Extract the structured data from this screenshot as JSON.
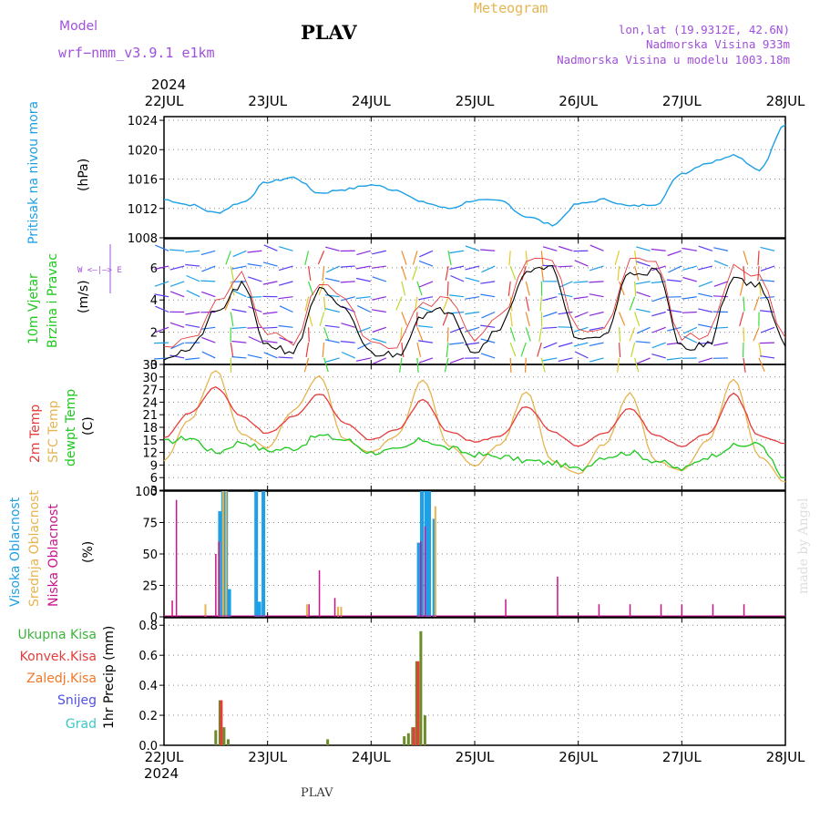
{
  "header": {
    "model_label": "Model",
    "model_value": "wrf−nmm_v3.9.1  e1km",
    "station": "PLAV",
    "meteogram": "Meteogram",
    "lonlat": "lon,lat (19.9312E, 42.6N)",
    "elev": "Nadmorska Visina 933m",
    "elev_model": "Nadmorska Visina u modelu 1003.18m",
    "footer_station": "PLAV",
    "credit": "made by Angel"
  },
  "colors": {
    "pressure": "#1ea0e6",
    "temp2m": "#e63c3c",
    "sfc": "#e6b450",
    "dew": "#1ec81e",
    "purple": "#a050dc",
    "high": "#1ea0e6",
    "mid": "#e6b450",
    "low": "#c8148c",
    "ukupna": "#3cb43c",
    "konvek": "#e63c3c",
    "zaledj": "#f07828",
    "snijeg": "#5050e6",
    "grad": "#3cc8c8"
  },
  "time_axis": {
    "year": "2024",
    "days": [
      "22JUL",
      "23JUL",
      "24JUL",
      "25JUL",
      "26JUL",
      "27JUL",
      "28JUL"
    ]
  },
  "panel_labels": {
    "pressure": {
      "name": "Pritisak na nivou mora",
      "unit": "(hPa)"
    },
    "wind": {
      "line1": "10m Vjetar",
      "line2": "Brzina i Pravac",
      "unit": "(m/s)",
      "compass": "W <–|–> E"
    },
    "temp": {
      "t2": "2m Temp",
      "sfc": "SFC Temp",
      "dew": "dewpt Temp",
      "unit": "(C)"
    },
    "cloud": {
      "high": "Visoka Oblacnost",
      "mid": "Srednja Oblacnost",
      "low": "Niska Oblacnost",
      "unit": "(%)"
    },
    "precip": {
      "ukupna": "Ukupna Kisa",
      "konvek": "Konvek.Kisa",
      "zaledj": "Zaledj.Kisa",
      "snijeg": "Snijeg",
      "grad": "Grad",
      "axis": "1hr Precip (mm)"
    }
  },
  "chart_data": [
    {
      "type": "line",
      "title": "Pritisak na nivou mora",
      "ylabel": "(hPa)",
      "ylim": [
        1008,
        1024.5
      ],
      "yticks": [
        1008,
        1012,
        1016,
        1020,
        1024
      ],
      "x_days": [
        0,
        0.25,
        0.5,
        0.75,
        1.0,
        1.25,
        1.5,
        1.75,
        2.0,
        2.25,
        2.5,
        2.75,
        3.0,
        3.25,
        3.5,
        3.75,
        4.0,
        4.25,
        4.5,
        4.75,
        5.0,
        5.25,
        5.5,
        5.75,
        6.0
      ],
      "series": [
        {
          "name": "Pritisak",
          "values": [
            1013.2,
            1012.5,
            1011.4,
            1012.8,
            1015.6,
            1016.2,
            1014.1,
            1014.6,
            1015.2,
            1014.5,
            1012.8,
            1012.0,
            1013.1,
            1013.0,
            1010.9,
            1009.8,
            1012.6,
            1013.2,
            1012.3,
            1012.6,
            1016.8,
            1018.2,
            1019.3,
            1017.3,
            1023.3
          ]
        }
      ]
    },
    {
      "type": "line",
      "title": "10m Vjetar Brzina i Pravac",
      "ylabel": "(m/s)",
      "ylim": [
        0,
        7.8
      ],
      "yticks": [
        0,
        2,
        4,
        6
      ],
      "x_days": [
        0,
        0.25,
        0.5,
        0.75,
        1.0,
        1.25,
        1.5,
        1.75,
        2.0,
        2.25,
        2.5,
        2.75,
        3.0,
        3.25,
        3.5,
        3.75,
        4.0,
        4.25,
        4.5,
        4.75,
        5.0,
        5.25,
        5.5,
        5.75,
        6.0
      ],
      "series": [
        {
          "name": "Brzina",
          "values": [
            0.5,
            0.9,
            3.2,
            4.9,
            1.2,
            0.8,
            4.6,
            3.3,
            0.7,
            0.6,
            3.1,
            3.4,
            0.8,
            2.4,
            5.8,
            5.9,
            1.4,
            1.8,
            5.7,
            5.8,
            1.1,
            1.2,
            5.4,
            4.9,
            1.2
          ]
        }
      ]
    },
    {
      "type": "line",
      "title": "2m Temp / SFC Temp / dewpt Temp",
      "ylabel": "(C)",
      "ylim": [
        3,
        33
      ],
      "yticks": [
        3,
        6,
        9,
        12,
        15,
        18,
        21,
        24,
        27,
        30,
        33
      ],
      "x_days": [
        0,
        0.25,
        0.5,
        0.75,
        1.0,
        1.25,
        1.5,
        1.75,
        2.0,
        2.25,
        2.5,
        2.75,
        3.0,
        3.25,
        3.5,
        3.75,
        4.0,
        4.25,
        4.5,
        4.75,
        5.0,
        5.25,
        5.5,
        5.75,
        6.0
      ],
      "series": [
        {
          "name": "2m Temp",
          "values": [
            15.5,
            21.5,
            27.5,
            20.5,
            16.5,
            20.5,
            26.0,
            19.0,
            15.0,
            17.5,
            24.5,
            17.0,
            14.5,
            16.0,
            23.0,
            17.0,
            13.5,
            16.5,
            22.5,
            16.0,
            13.5,
            16.5,
            26.0,
            16.0,
            14.0
          ]
        },
        {
          "name": "SFC Temp",
          "values": [
            10.0,
            20.0,
            31.5,
            16.5,
            13.0,
            22.0,
            30.0,
            15.0,
            12.0,
            16.0,
            29.5,
            13.5,
            9.0,
            14.0,
            26.5,
            10.0,
            7.0,
            14.0,
            26.0,
            10.0,
            7.5,
            15.0,
            29.5,
            11.0,
            5.0
          ]
        },
        {
          "name": "dewpt Temp",
          "values": [
            14.5,
            15.5,
            12.0,
            14.5,
            12.5,
            13.0,
            16.0,
            15.0,
            12.0,
            12.5,
            15.0,
            13.0,
            11.5,
            11.0,
            10.0,
            9.5,
            8.0,
            11.0,
            12.0,
            10.0,
            8.0,
            11.0,
            13.5,
            14.0,
            5.5
          ]
        }
      ]
    },
    {
      "type": "bar",
      "title": "Visoka / Srednja / Niska Oblacnost",
      "ylabel": "(%)",
      "ylim": [
        0,
        100
      ],
      "yticks": [
        0,
        25,
        50,
        75,
        100
      ],
      "series": [
        {
          "name": "Visoka Oblacnost",
          "x_days": [
            0.54,
            0.57,
            0.6,
            0.63,
            0.89,
            0.92,
            0.96,
            2.46,
            2.49,
            2.53,
            2.56,
            2.61
          ],
          "values": [
            84,
            100,
            100,
            22,
            100,
            12,
            100,
            59,
            100,
            100,
            100,
            78
          ]
        },
        {
          "name": "Srednja Oblacnost",
          "x_days": [
            0.4,
            0.53,
            0.57,
            0.6,
            1.38,
            1.68,
            1.71,
            2.62
          ],
          "values": [
            10,
            60,
            100,
            100,
            10,
            8,
            8,
            88
          ]
        },
        {
          "name": "Niska Oblacnost",
          "x_days": [
            0.08,
            0.12,
            0.5,
            0.53,
            1.4,
            1.5,
            1.65,
            2.48,
            2.52,
            3.3,
            3.8,
            4.2,
            4.5,
            4.8,
            5.0,
            5.3,
            5.6
          ],
          "values": [
            13,
            93,
            50,
            60,
            10,
            37,
            15,
            60,
            72,
            14,
            32,
            10,
            10,
            10,
            10,
            10,
            10
          ]
        }
      ]
    },
    {
      "type": "bar",
      "title": "1hr Precip",
      "ylabel": "1hr Precip (mm)",
      "ylim": [
        0,
        0.85
      ],
      "yticks": [
        0.0,
        0.2,
        0.4,
        0.6,
        0.8
      ],
      "series": [
        {
          "name": "Ukupna Kisa",
          "x_days": [
            0.5,
            0.54,
            0.58,
            0.62,
            1.58,
            2.32,
            2.36,
            2.4,
            2.44,
            2.48,
            2.52
          ],
          "values": [
            0.1,
            0.3,
            0.12,
            0.04,
            0.04,
            0.06,
            0.08,
            0.12,
            0.56,
            0.76,
            0.2
          ]
        },
        {
          "name": "Konvek.Kisa",
          "x_days": [
            0.54,
            2.4,
            2.44
          ],
          "values": [
            0.3,
            0.12,
            0.56
          ]
        }
      ]
    }
  ]
}
